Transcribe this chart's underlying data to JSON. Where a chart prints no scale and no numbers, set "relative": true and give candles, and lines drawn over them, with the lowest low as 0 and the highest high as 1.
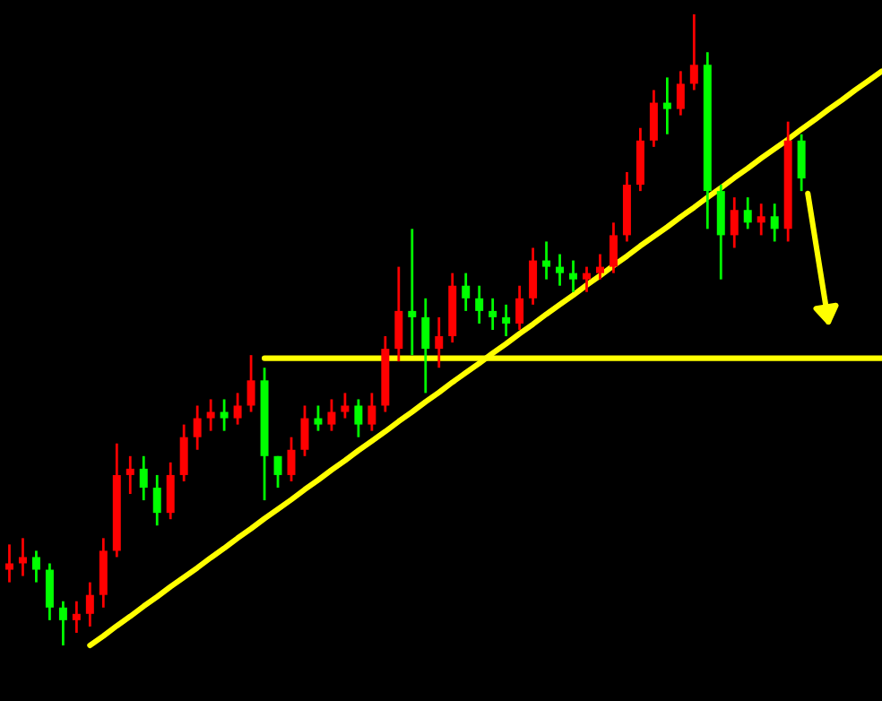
{
  "chart_data": {
    "type": "candlestick",
    "relative": true,
    "grid": false,
    "categories": [
      null,
      null,
      null,
      null,
      null,
      null,
      null,
      null,
      null,
      null,
      null,
      null,
      null,
      null,
      null,
      null,
      null,
      null,
      null,
      null,
      null,
      null,
      null,
      null,
      null,
      null,
      null,
      null,
      null,
      null,
      null,
      null,
      null,
      null,
      null,
      null,
      null,
      null,
      null,
      null,
      null,
      null,
      null,
      null,
      null,
      null,
      null,
      null,
      null,
      null,
      null,
      null,
      null,
      null,
      null,
      null,
      null,
      null,
      null,
      null,
      null,
      null,
      null,
      null,
      null,
      null
    ],
    "ohlc": [
      [
        0.12,
        0.16,
        0.1,
        0.13
      ],
      [
        0.13,
        0.17,
        0.11,
        0.14
      ],
      [
        0.14,
        0.15,
        0.1,
        0.12
      ],
      [
        0.12,
        0.13,
        0.04,
        0.06
      ],
      [
        0.06,
        0.07,
        0.0,
        0.04
      ],
      [
        0.04,
        0.07,
        0.02,
        0.05
      ],
      [
        0.05,
        0.1,
        0.03,
        0.08
      ],
      [
        0.08,
        0.17,
        0.06,
        0.15
      ],
      [
        0.15,
        0.32,
        0.14,
        0.27
      ],
      [
        0.27,
        0.3,
        0.24,
        0.28
      ],
      [
        0.28,
        0.3,
        0.23,
        0.25
      ],
      [
        0.25,
        0.27,
        0.19,
        0.21
      ],
      [
        0.21,
        0.29,
        0.2,
        0.27
      ],
      [
        0.27,
        0.35,
        0.26,
        0.33
      ],
      [
        0.33,
        0.38,
        0.31,
        0.36
      ],
      [
        0.36,
        0.39,
        0.34,
        0.37
      ],
      [
        0.37,
        0.39,
        0.34,
        0.36
      ],
      [
        0.36,
        0.4,
        0.35,
        0.38
      ],
      [
        0.38,
        0.46,
        0.37,
        0.42
      ],
      [
        0.42,
        0.44,
        0.23,
        0.3
      ],
      [
        0.3,
        0.3,
        0.25,
        0.27
      ],
      [
        0.27,
        0.33,
        0.26,
        0.31
      ],
      [
        0.31,
        0.38,
        0.3,
        0.36
      ],
      [
        0.36,
        0.38,
        0.34,
        0.35
      ],
      [
        0.35,
        0.39,
        0.34,
        0.37
      ],
      [
        0.37,
        0.4,
        0.36,
        0.38
      ],
      [
        0.38,
        0.39,
        0.33,
        0.35
      ],
      [
        0.35,
        0.4,
        0.34,
        0.38
      ],
      [
        0.38,
        0.49,
        0.37,
        0.47
      ],
      [
        0.47,
        0.6,
        0.45,
        0.53
      ],
      [
        0.53,
        0.66,
        0.46,
        0.52
      ],
      [
        0.52,
        0.55,
        0.4,
        0.47
      ],
      [
        0.47,
        0.52,
        0.44,
        0.49
      ],
      [
        0.49,
        0.59,
        0.48,
        0.57
      ],
      [
        0.57,
        0.59,
        0.53,
        0.55
      ],
      [
        0.55,
        0.57,
        0.51,
        0.53
      ],
      [
        0.53,
        0.55,
        0.5,
        0.52
      ],
      [
        0.52,
        0.54,
        0.49,
        0.51
      ],
      [
        0.51,
        0.57,
        0.5,
        0.55
      ],
      [
        0.55,
        0.63,
        0.54,
        0.61
      ],
      [
        0.61,
        0.64,
        0.58,
        0.6
      ],
      [
        0.6,
        0.62,
        0.57,
        0.59
      ],
      [
        0.59,
        0.61,
        0.56,
        0.58
      ],
      [
        0.58,
        0.6,
        0.56,
        0.59
      ],
      [
        0.59,
        0.62,
        0.58,
        0.6
      ],
      [
        0.6,
        0.67,
        0.59,
        0.65
      ],
      [
        0.65,
        0.75,
        0.64,
        0.73
      ],
      [
        0.73,
        0.82,
        0.72,
        0.8
      ],
      [
        0.8,
        0.88,
        0.79,
        0.86
      ],
      [
        0.86,
        0.9,
        0.81,
        0.85
      ],
      [
        0.85,
        0.91,
        0.84,
        0.89
      ],
      [
        0.89,
        1.0,
        0.88,
        0.92
      ],
      [
        0.92,
        0.94,
        0.66,
        0.72
      ],
      [
        0.72,
        0.73,
        0.58,
        0.65
      ],
      [
        0.65,
        0.71,
        0.63,
        0.69
      ],
      [
        0.69,
        0.71,
        0.66,
        0.67
      ],
      [
        0.67,
        0.7,
        0.65,
        0.68
      ],
      [
        0.68,
        0.7,
        0.64,
        0.66
      ],
      [
        0.66,
        0.83,
        0.64,
        0.8
      ],
      [
        0.8,
        0.81,
        0.72,
        0.74
      ],
      null,
      null,
      null,
      null,
      null,
      null
    ],
    "colors": [
      "#ff0000",
      "#ff0000",
      "#00ff00",
      "#00ff00",
      "#00ff00",
      "#ff0000",
      "#ff0000",
      "#ff0000",
      "#ff0000",
      "#ff0000",
      "#00ff00",
      "#00ff00",
      "#ff0000",
      "#ff0000",
      "#ff0000",
      "#ff0000",
      "#00ff00",
      "#ff0000",
      "#ff0000",
      "#00ff00",
      "#00ff00",
      "#ff0000",
      "#ff0000",
      "#00ff00",
      "#ff0000",
      "#ff0000",
      "#00ff00",
      "#ff0000",
      "#ff0000",
      "#ff0000",
      "#00ff00",
      "#00ff00",
      "#ff0000",
      "#ff0000",
      "#00ff00",
      "#00ff00",
      "#00ff00",
      "#00ff00",
      "#ff0000",
      "#ff0000",
      "#00ff00",
      "#00ff00",
      "#00ff00",
      "#ff0000",
      "#ff0000",
      "#ff0000",
      "#ff0000",
      "#ff0000",
      "#ff0000",
      "#00ff00",
      "#ff0000",
      "#ff0000",
      "#00ff00",
      "#00ff00",
      "#ff0000",
      "#00ff00",
      "#ff0000",
      "#00ff00",
      "#ff0000",
      "#00ff00",
      null,
      null,
      null,
      null,
      null,
      null
    ],
    "series": [
      {
        "type": "line",
        "color": "#ffff00",
        "values": [
          null,
          null,
          null,
          null,
          null,
          null,
          0,
          0.015,
          0.031,
          0.046,
          0.062,
          0.077,
          0.093,
          0.108,
          0.123,
          0.139,
          0.154,
          0.17,
          0.185,
          0.201,
          0.216,
          0.231,
          0.247,
          0.262,
          0.278,
          0.293,
          0.309,
          0.324,
          0.339,
          0.355,
          0.37,
          0.386,
          0.401,
          0.417,
          0.432,
          0.447,
          0.463,
          0.478,
          0.494,
          0.509,
          0.525,
          0.54,
          0.555,
          0.571,
          0.586,
          0.602,
          0.617,
          0.633,
          0.648,
          0.663,
          0.679,
          0.694,
          0.71,
          0.725,
          0.741,
          0.756,
          0.772,
          0.787,
          0.802,
          0.818,
          0.833,
          0.849,
          0.864,
          0.88,
          0.895,
          0.91
        ]
      },
      {
        "type": "line",
        "color": "#ffff00",
        "values": [
          null,
          null,
          null,
          null,
          null,
          null,
          null,
          null,
          null,
          null,
          null,
          null,
          null,
          null,
          null,
          null,
          null,
          null,
          null,
          0.455,
          0.455,
          0.455,
          0.455,
          0.455,
          0.455,
          0.455,
          0.455,
          0.455,
          0.455,
          0.455,
          0.455,
          0.455,
          0.455,
          0.455,
          0.455,
          0.455,
          0.455,
          0.455,
          0.455,
          0.455,
          0.455,
          0.455,
          0.455,
          0.455,
          0.455,
          0.455,
          0.455,
          0.455,
          0.455,
          0.455,
          0.455,
          0.455,
          0.455,
          0.455,
          0.455,
          0.455,
          0.455,
          0.455,
          0.455,
          0.455,
          0.455,
          0.455,
          0.455,
          0.455,
          0.455,
          0.455
        ]
      }
    ]
  }
}
